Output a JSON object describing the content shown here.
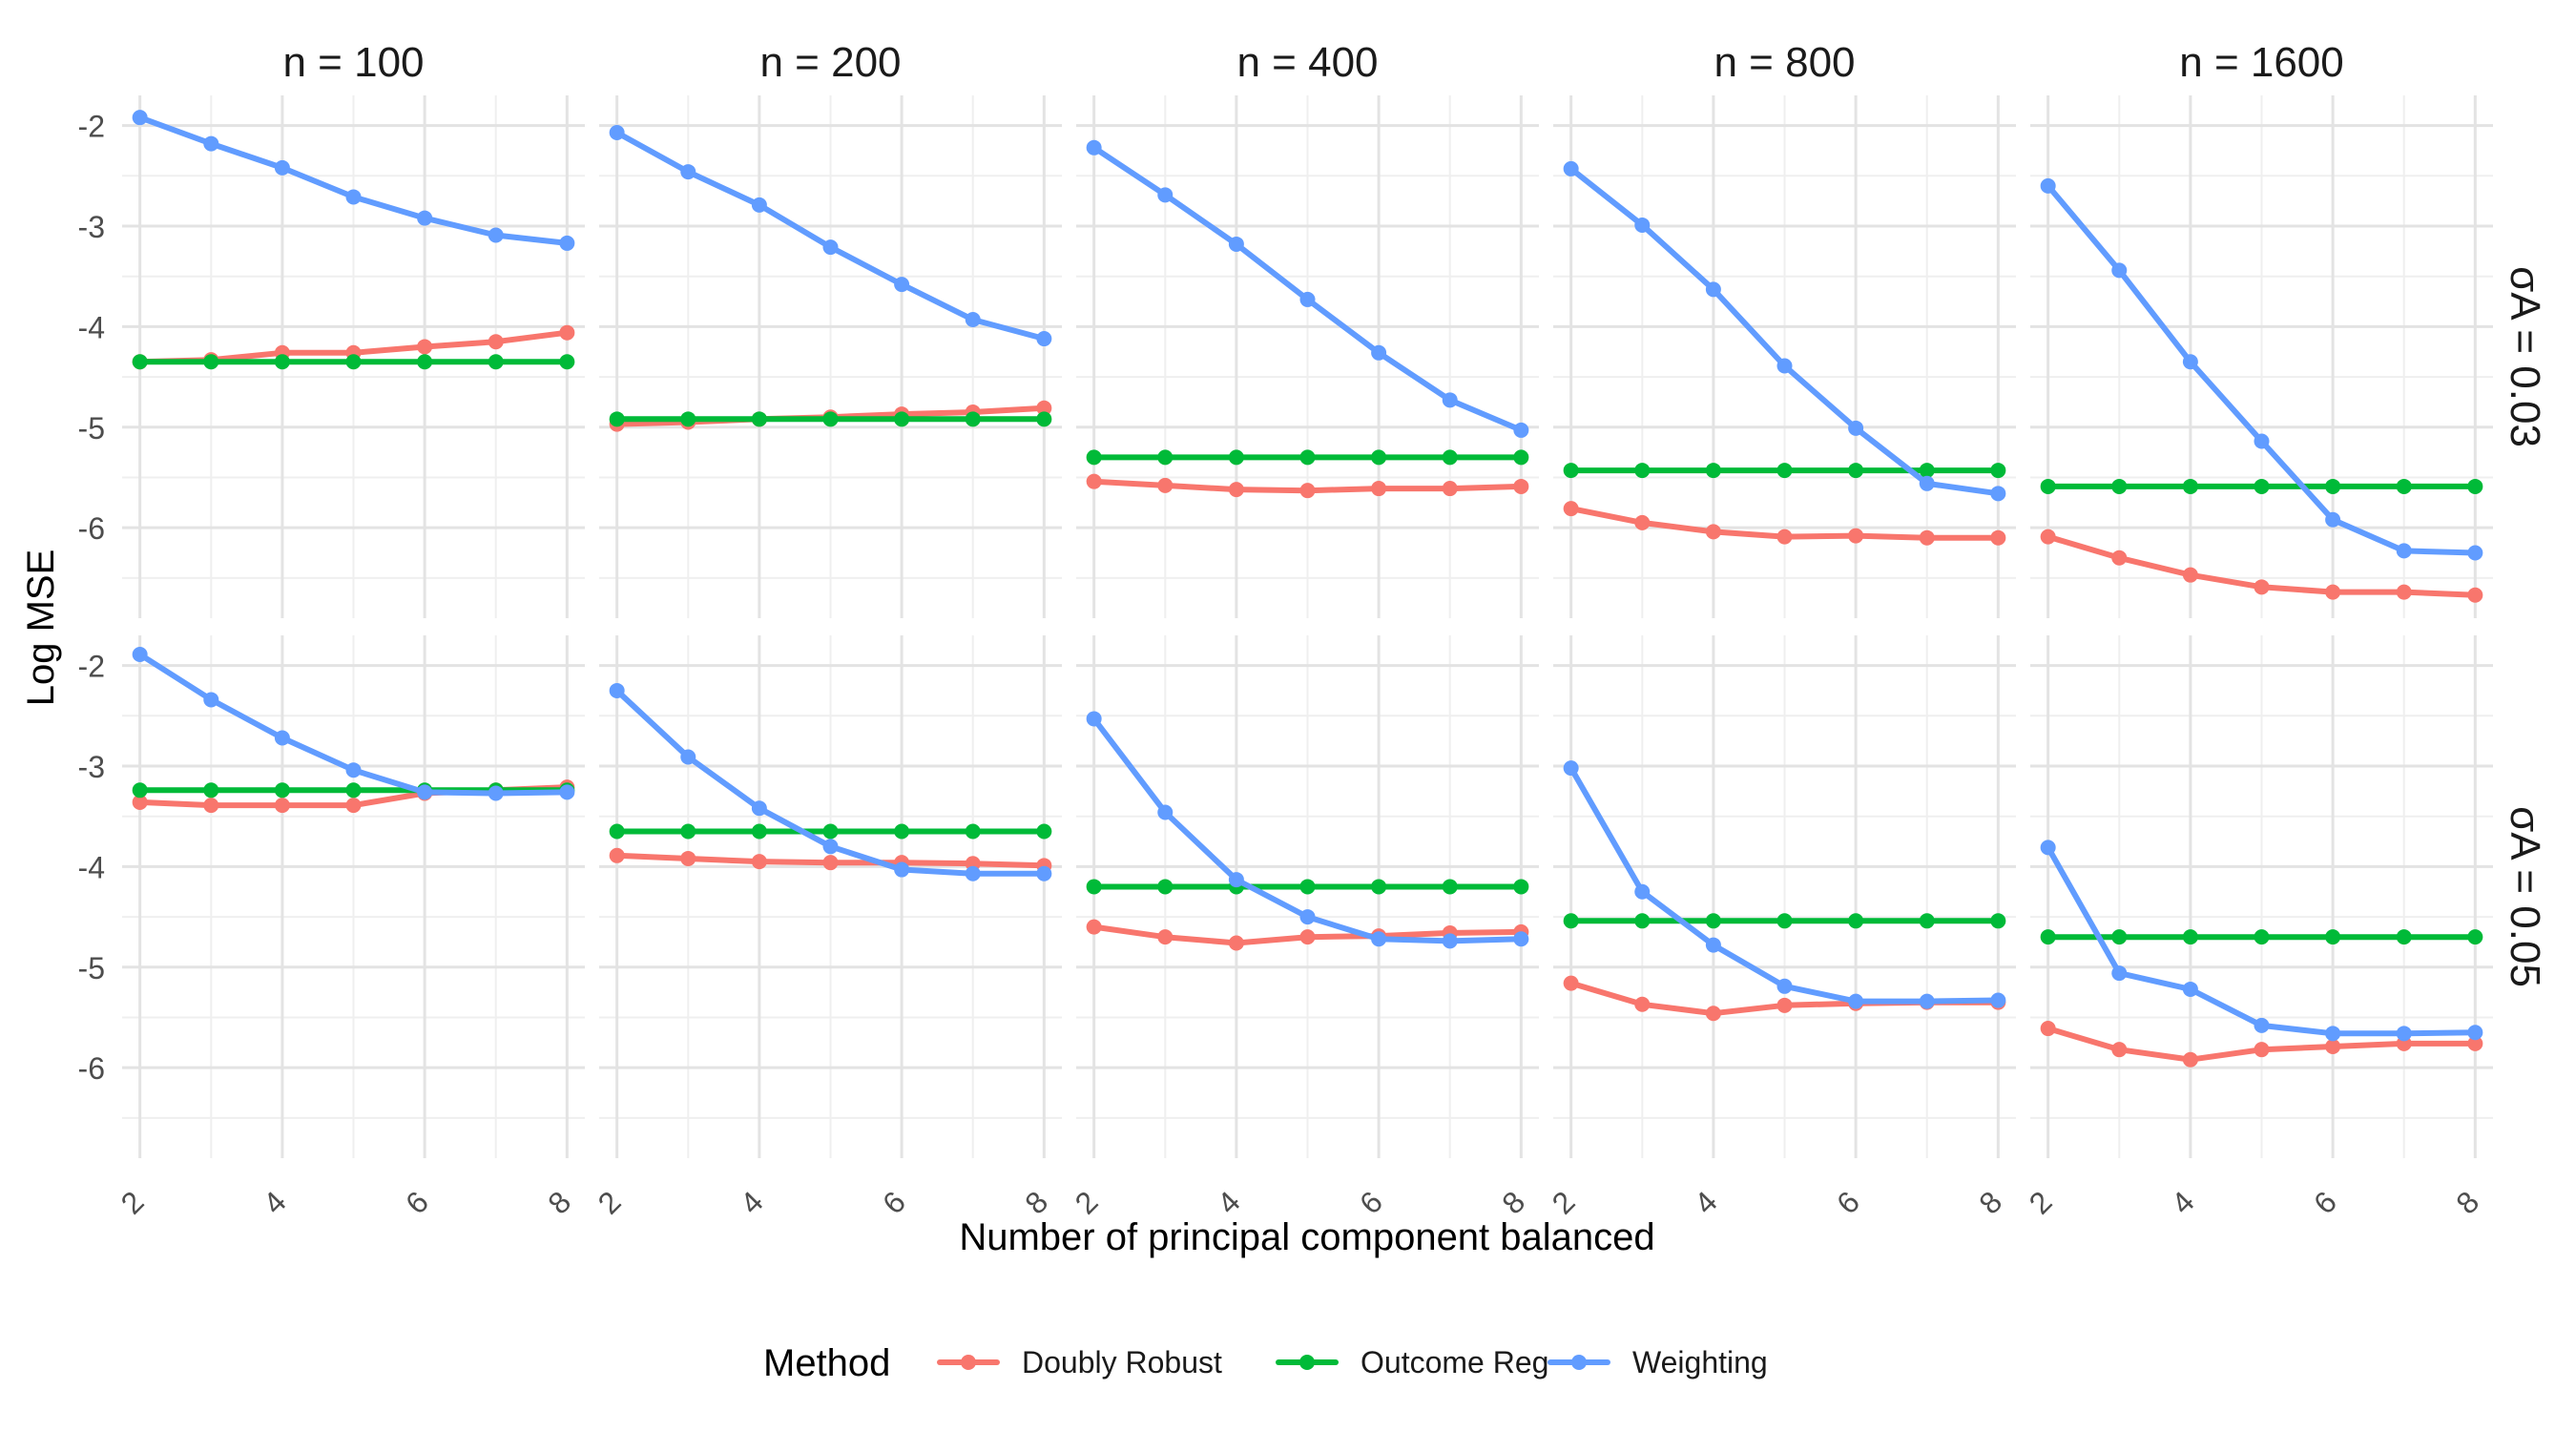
{
  "chart_data": {
    "type": "line",
    "xlabel": "Number of principal component balanced",
    "ylabel": "Log MSE",
    "x": [
      2,
      3,
      4,
      5,
      6,
      7,
      8
    ],
    "x_ticks": [
      2,
      4,
      6,
      8
    ],
    "y_ticks": [
      -2,
      -3,
      -4,
      -5,
      -6
    ],
    "xlim": [
      1.75,
      8.25
    ],
    "ylim": [
      -6.9,
      -1.7
    ],
    "grid": true,
    "columns": [
      "n = 100",
      "n = 200",
      "n = 400",
      "n = 800",
      "n = 1600"
    ],
    "rows": [
      "σA = 0.03",
      "σA = 0.05"
    ],
    "legend": {
      "title": "Method",
      "position": "bottom",
      "entries": [
        {
          "name": "Doubly Robust",
          "color": "#F8766D"
        },
        {
          "name": "Outcome Reg",
          "color": "#00BA38"
        },
        {
          "name": "Weighting",
          "color": "#619CFF"
        }
      ]
    },
    "panels": [
      {
        "row": 0,
        "col": 0,
        "series": [
          {
            "name": "Doubly Robust",
            "values": [
              -4.35,
              -4.33,
              -4.26,
              -4.26,
              -4.2,
              -4.15,
              -4.06
            ]
          },
          {
            "name": "Outcome Reg",
            "values": [
              -4.35,
              -4.35,
              -4.35,
              -4.35,
              -4.35,
              -4.35,
              -4.35
            ]
          },
          {
            "name": "Weighting",
            "values": [
              -1.92,
              -2.18,
              -2.42,
              -2.71,
              -2.92,
              -3.09,
              -3.17
            ]
          }
        ]
      },
      {
        "row": 0,
        "col": 1,
        "series": [
          {
            "name": "Doubly Robust",
            "values": [
              -4.97,
              -4.95,
              -4.92,
              -4.9,
              -4.87,
              -4.85,
              -4.81
            ]
          },
          {
            "name": "Outcome Reg",
            "values": [
              -4.92,
              -4.92,
              -4.92,
              -4.92,
              -4.92,
              -4.92,
              -4.92
            ]
          },
          {
            "name": "Weighting",
            "values": [
              -2.07,
              -2.46,
              -2.79,
              -3.21,
              -3.58,
              -3.93,
              -4.12
            ]
          }
        ]
      },
      {
        "row": 0,
        "col": 2,
        "series": [
          {
            "name": "Doubly Robust",
            "values": [
              -5.54,
              -5.58,
              -5.62,
              -5.63,
              -5.61,
              -5.61,
              -5.59
            ]
          },
          {
            "name": "Outcome Reg",
            "values": [
              -5.3,
              -5.3,
              -5.3,
              -5.3,
              -5.3,
              -5.3,
              -5.3
            ]
          },
          {
            "name": "Weighting",
            "values": [
              -2.22,
              -2.69,
              -3.18,
              -3.73,
              -4.26,
              -4.73,
              -5.03
            ]
          }
        ]
      },
      {
        "row": 0,
        "col": 3,
        "series": [
          {
            "name": "Doubly Robust",
            "values": [
              -5.81,
              -5.95,
              -6.04,
              -6.09,
              -6.08,
              -6.1,
              -6.1
            ]
          },
          {
            "name": "Outcome Reg",
            "values": [
              -5.43,
              -5.43,
              -5.43,
              -5.43,
              -5.43,
              -5.43,
              -5.43
            ]
          },
          {
            "name": "Weighting",
            "values": [
              -2.43,
              -2.99,
              -3.63,
              -4.39,
              -5.01,
              -5.56,
              -5.66
            ]
          }
        ]
      },
      {
        "row": 0,
        "col": 4,
        "series": [
          {
            "name": "Doubly Robust",
            "values": [
              -6.09,
              -6.3,
              -6.47,
              -6.59,
              -6.64,
              -6.64,
              -6.67
            ]
          },
          {
            "name": "Outcome Reg",
            "values": [
              -5.59,
              -5.59,
              -5.59,
              -5.59,
              -5.59,
              -5.59,
              -5.59
            ]
          },
          {
            "name": "Weighting",
            "values": [
              -2.6,
              -3.44,
              -4.35,
              -5.14,
              -5.92,
              -6.23,
              -6.25
            ]
          }
        ]
      },
      {
        "row": 1,
        "col": 0,
        "series": [
          {
            "name": "Doubly Robust",
            "values": [
              -3.36,
              -3.39,
              -3.39,
              -3.39,
              -3.27,
              -3.24,
              -3.21
            ]
          },
          {
            "name": "Outcome Reg",
            "values": [
              -3.24,
              -3.24,
              -3.24,
              -3.24,
              -3.24,
              -3.24,
              -3.24
            ]
          },
          {
            "name": "Weighting",
            "values": [
              -1.89,
              -2.34,
              -2.72,
              -3.04,
              -3.26,
              -3.27,
              -3.26
            ]
          }
        ]
      },
      {
        "row": 1,
        "col": 1,
        "series": [
          {
            "name": "Doubly Robust",
            "values": [
              -3.89,
              -3.92,
              -3.95,
              -3.96,
              -3.96,
              -3.97,
              -3.99
            ]
          },
          {
            "name": "Outcome Reg",
            "values": [
              -3.65,
              -3.65,
              -3.65,
              -3.65,
              -3.65,
              -3.65,
              -3.65
            ]
          },
          {
            "name": "Weighting",
            "values": [
              -2.25,
              -2.91,
              -3.42,
              -3.8,
              -4.03,
              -4.07,
              -4.07
            ]
          }
        ]
      },
      {
        "row": 1,
        "col": 2,
        "series": [
          {
            "name": "Doubly Robust",
            "values": [
              -4.6,
              -4.7,
              -4.76,
              -4.7,
              -4.69,
              -4.66,
              -4.65
            ]
          },
          {
            "name": "Outcome Reg",
            "values": [
              -4.2,
              -4.2,
              -4.2,
              -4.2,
              -4.2,
              -4.2,
              -4.2
            ]
          },
          {
            "name": "Weighting",
            "values": [
              -2.53,
              -3.46,
              -4.13,
              -4.5,
              -4.72,
              -4.74,
              -4.72
            ]
          }
        ]
      },
      {
        "row": 1,
        "col": 3,
        "series": [
          {
            "name": "Doubly Robust",
            "values": [
              -5.16,
              -5.37,
              -5.46,
              -5.38,
              -5.36,
              -5.35,
              -5.35
            ]
          },
          {
            "name": "Outcome Reg",
            "values": [
              -4.54,
              -4.54,
              -4.54,
              -4.54,
              -4.54,
              -4.54,
              -4.54
            ]
          },
          {
            "name": "Weighting",
            "values": [
              -3.02,
              -4.25,
              -4.78,
              -5.19,
              -5.34,
              -5.34,
              -5.33
            ]
          }
        ]
      },
      {
        "row": 1,
        "col": 4,
        "series": [
          {
            "name": "Doubly Robust",
            "values": [
              -5.61,
              -5.82,
              -5.92,
              -5.82,
              -5.79,
              -5.76,
              -5.76
            ]
          },
          {
            "name": "Outcome Reg",
            "values": [
              -4.7,
              -4.7,
              -4.7,
              -4.7,
              -4.7,
              -4.7,
              -4.7
            ]
          },
          {
            "name": "Weighting",
            "values": [
              -3.81,
              -5.06,
              -5.22,
              -5.58,
              -5.66,
              -5.66,
              -5.65
            ]
          }
        ]
      }
    ]
  }
}
